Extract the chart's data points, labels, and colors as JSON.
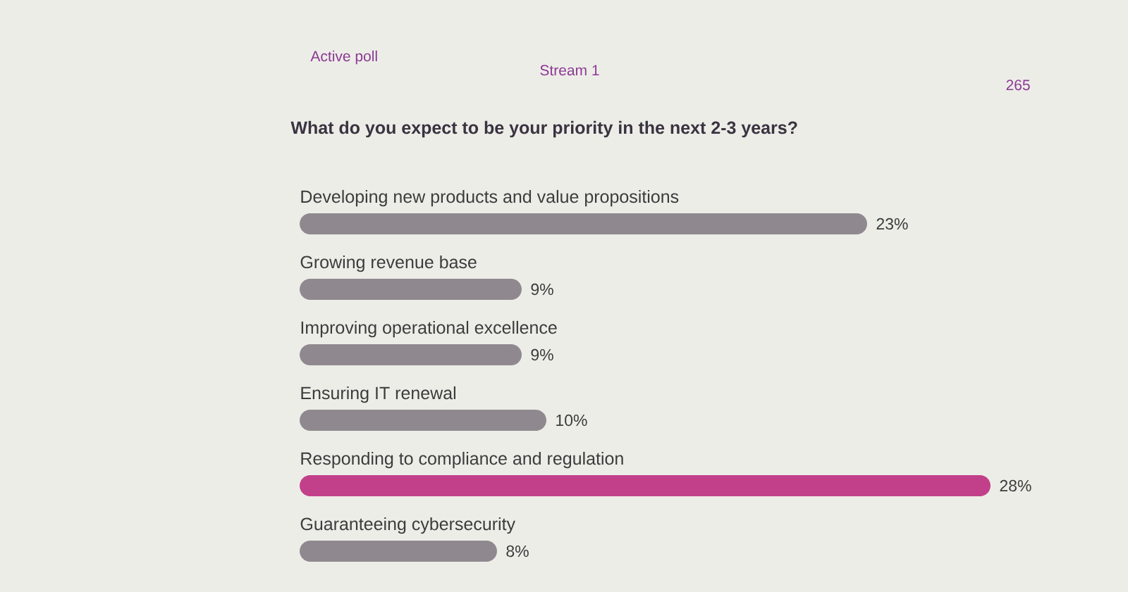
{
  "chart_data": {
    "type": "bar",
    "orientation": "horizontal",
    "title": "What do you expect to be your priority in the next 2-3 years?",
    "categories": [
      "Developing new products and value propositions",
      "Growing revenue base",
      "Improving operational excellence",
      "Ensuring IT renewal",
      "Responding to compliance and regulation",
      "Guaranteeing cybersecurity"
    ],
    "values": [
      23,
      9,
      9,
      10,
      28,
      8
    ],
    "colors": [
      "#8f898f",
      "#8f898f",
      "#8f898f",
      "#8f898f",
      "#c2408a",
      "#8f898f"
    ],
    "value_labels": [
      "23%",
      "9%",
      "9%",
      "10%",
      "28%",
      "8%"
    ],
    "annotations": [
      "Active poll",
      "Stream 1",
      "265"
    ]
  }
}
